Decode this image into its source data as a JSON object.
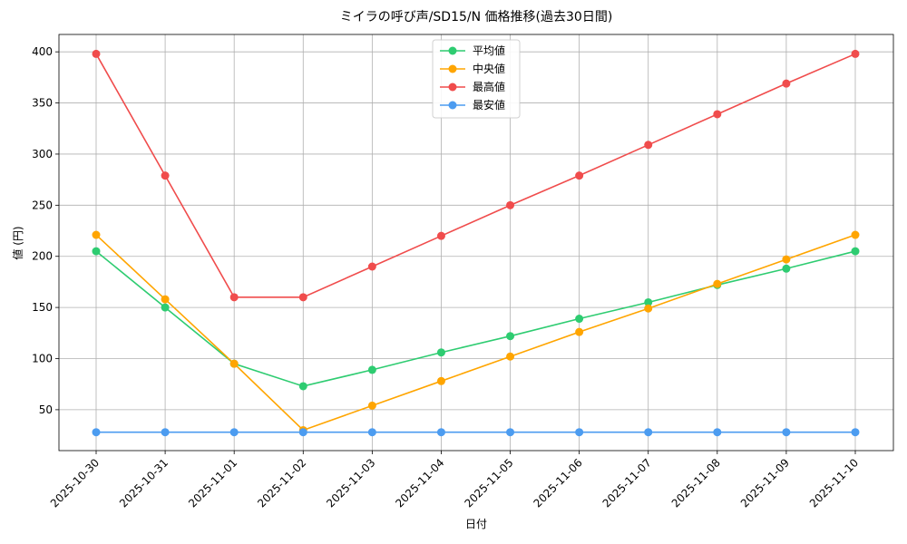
{
  "chart_data": {
    "type": "line",
    "title": "ミイラの呼び声/SD15/N 価格推移(過去30日間)",
    "xlabel": "日付",
    "ylabel": "値 (円)",
    "categories": [
      "2025-10-30",
      "2025-10-31",
      "2025-11-01",
      "2025-11-02",
      "2025-11-03",
      "2025-11-04",
      "2025-11-05",
      "2025-11-06",
      "2025-11-07",
      "2025-11-08",
      "2025-11-09",
      "2025-11-10"
    ],
    "series": [
      {
        "name": "平均値",
        "color": "#2ecc71",
        "values": [
          205,
          150,
          95,
          73,
          89,
          106,
          122,
          139,
          155,
          172,
          188,
          205
        ]
      },
      {
        "name": "中央値",
        "color": "#ffa500",
        "values": [
          221,
          158,
          95,
          30,
          54,
          78,
          102,
          126,
          149,
          173,
          197,
          221
        ]
      },
      {
        "name": "最高値",
        "color": "#f04c4c",
        "values": [
          398,
          279,
          160,
          160,
          190,
          220,
          250,
          279,
          309,
          339,
          369,
          398
        ]
      },
      {
        "name": "最安値",
        "color": "#4c9cf0",
        "values": [
          28,
          28,
          28,
          28,
          28,
          28,
          28,
          28,
          28,
          28,
          28,
          28
        ]
      }
    ],
    "ylim": [
      10,
      417
    ],
    "yticks": [
      50,
      100,
      150,
      200,
      250,
      300,
      350,
      400
    ],
    "grid": true,
    "legend": "upper center"
  }
}
